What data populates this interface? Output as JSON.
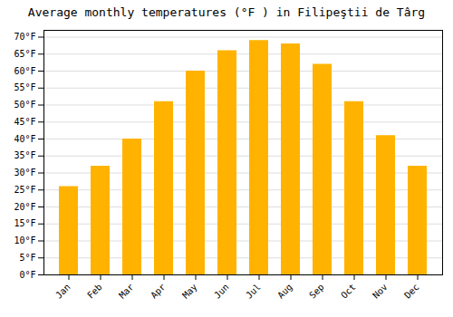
{
  "chart_data": {
    "type": "bar",
    "title": "Average monthly temperatures (°F ) in Filipeştii de Târg",
    "categories": [
      "Jan",
      "Feb",
      "Mar",
      "Apr",
      "May",
      "Jun",
      "Jul",
      "Aug",
      "Sep",
      "Oct",
      "Nov",
      "Dec"
    ],
    "values": [
      26,
      32,
      40,
      51,
      60,
      66,
      69,
      68,
      62,
      51,
      41,
      32
    ],
    "color": "#FFB300",
    "ylim": [
      0,
      72
    ],
    "yticks": [
      {
        "value": 0,
        "label": "0°F"
      },
      {
        "value": 5,
        "label": "5°F"
      },
      {
        "value": 10,
        "label": "10°F"
      },
      {
        "value": 15,
        "label": "15°F"
      },
      {
        "value": 20,
        "label": "20°F"
      },
      {
        "value": 25,
        "label": "25°F"
      },
      {
        "value": 30,
        "label": "30°F"
      },
      {
        "value": 35,
        "label": "35°F"
      },
      {
        "value": 40,
        "label": "40°F"
      },
      {
        "value": 45,
        "label": "45°F"
      },
      {
        "value": 50,
        "label": "50°F"
      },
      {
        "value": 55,
        "label": "55°F"
      },
      {
        "value": 60,
        "label": "60°F"
      },
      {
        "value": 65,
        "label": "65°F"
      },
      {
        "value": 70,
        "label": "70°F"
      }
    ],
    "grid": true
  }
}
